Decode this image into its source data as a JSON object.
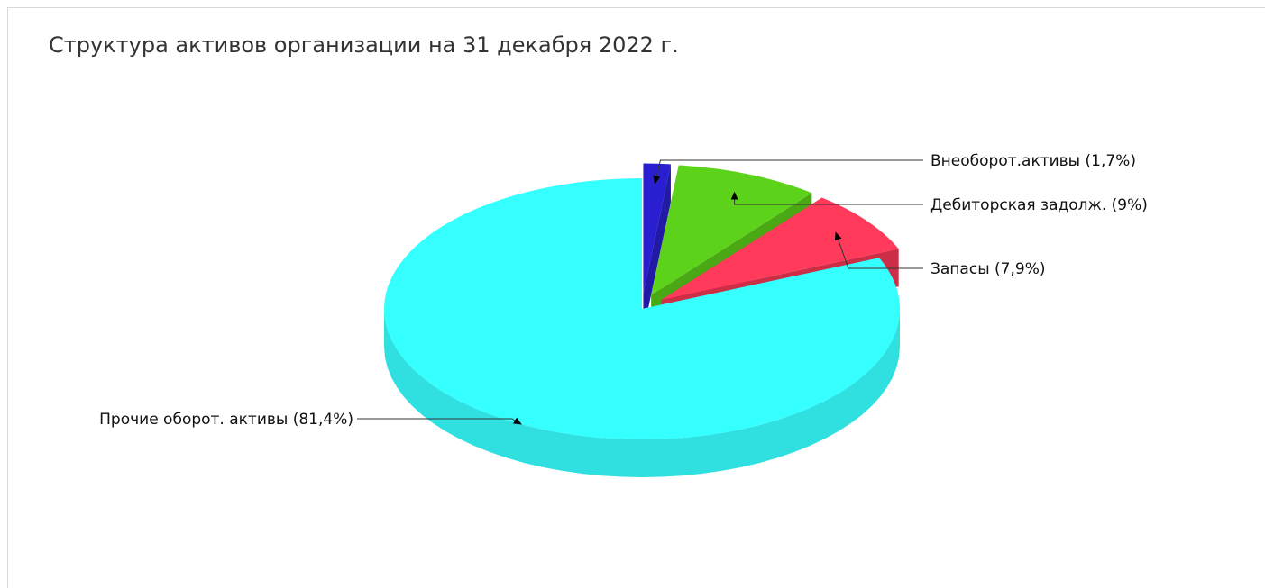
{
  "chart_data": {
    "type": "pie",
    "title": "Структура активов организации на 31 декабря 2022 г.",
    "slices": [
      {
        "name": "Внеоборот.активы",
        "value": 1.7,
        "label": "Внеоборот.активы (1,7%)",
        "color": "#2a1fd0",
        "exploded": true
      },
      {
        "name": "Дебиторская задолж.",
        "value": 9.0,
        "label": "Дебиторская задолж. (9%)",
        "color": "#5dd21a",
        "exploded": true
      },
      {
        "name": "Запасы",
        "value": 7.9,
        "label": "Запасы (7,9%)",
        "color": "#ff3a5a",
        "exploded": true
      },
      {
        "name": "Прочие оборот. активы",
        "value": 81.4,
        "label": "Прочие оборот. активы (81,4%)",
        "color": "#36ffff",
        "exploded": false
      }
    ]
  }
}
